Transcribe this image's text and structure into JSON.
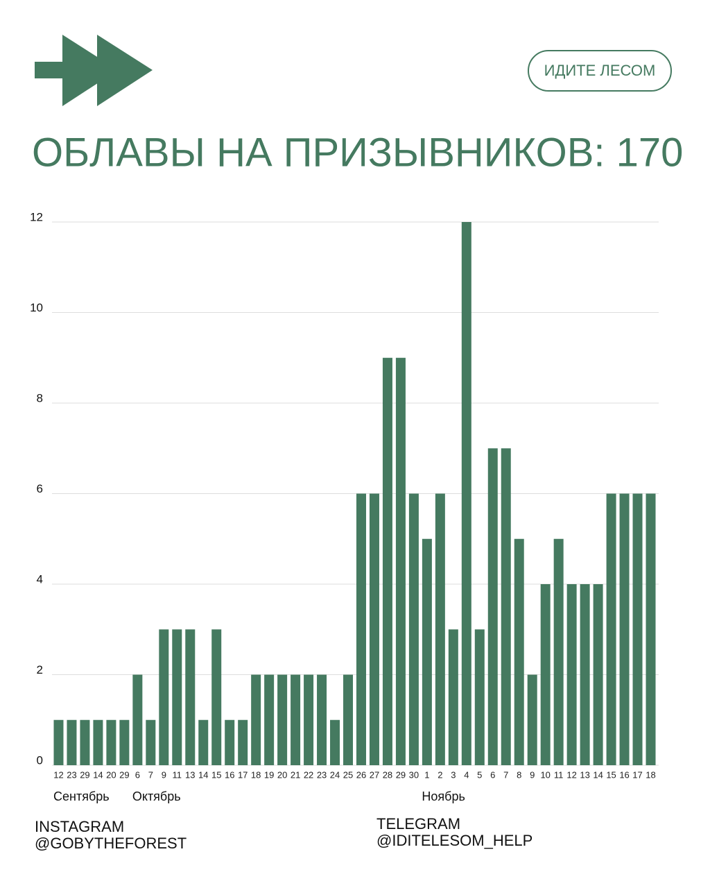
{
  "chart_data": {
    "type": "bar",
    "badge": "ИДИТЕ ЛЕСОМ",
    "title": "ОБЛАВЫ НА ПРИЗЫВНИКОВ: 170",
    "color": "#457a60",
    "categories": [
      "12",
      "23",
      "29",
      "14",
      "20",
      "29",
      "6",
      "7",
      "9",
      "11",
      "13",
      "14",
      "15",
      "16",
      "17",
      "18",
      "19",
      "20",
      "21",
      "22",
      "23",
      "24",
      "25",
      "26",
      "27",
      "28",
      "29",
      "30",
      "1",
      "2",
      "3",
      "4",
      "5",
      "6",
      "7",
      "8",
      "9",
      "10",
      "11",
      "12",
      "13",
      "14",
      "15",
      "16",
      "17",
      "18"
    ],
    "values": [
      1,
      1,
      1,
      1,
      1,
      1,
      2,
      1,
      3,
      3,
      3,
      1,
      3,
      1,
      1,
      2,
      2,
      2,
      2,
      2,
      2,
      1,
      2,
      6,
      6,
      9,
      9,
      6,
      5,
      6,
      3,
      12,
      3,
      7,
      7,
      5,
      2,
      4,
      5,
      4,
      4,
      4,
      6,
      6,
      6,
      6
    ],
    "months": [
      "Сентябрь",
      "Октябрь",
      "Ноябрь"
    ],
    "ylim": [
      0,
      12
    ],
    "yticks": [
      0,
      2,
      4,
      6,
      8,
      10,
      12
    ],
    "grid": true,
    "footer": {
      "left": [
        "INSTAGRAM",
        "@GOBYTHEFOREST"
      ],
      "right": [
        "TELEGRAM",
        "@IDITELESOM_HELP"
      ]
    }
  }
}
